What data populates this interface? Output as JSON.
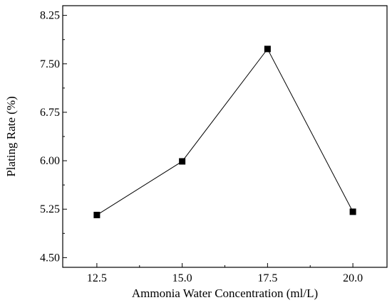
{
  "chart_data": {
    "type": "line",
    "title": "",
    "xlabel": "Ammonia Water Concentration (ml/L)",
    "ylabel": "Plating Rate (%)",
    "x": [
      12.5,
      15.0,
      17.5,
      20.0
    ],
    "series": [
      {
        "values": [
          5.16,
          5.99,
          7.73,
          5.21
        ]
      }
    ],
    "xlim": [
      11.5,
      21.0
    ],
    "ylim": [
      4.35,
      8.4
    ],
    "xticks": [
      12.5,
      15.0,
      17.5,
      20.0
    ],
    "xtick_labels": [
      "12.5",
      "15.0",
      "17.5",
      "20.0"
    ],
    "yticks": [
      4.5,
      5.25,
      6.0,
      6.75,
      7.5,
      8.25
    ],
    "ytick_labels": [
      "4.50",
      "5.25",
      "6.00",
      "6.75",
      "7.50",
      "8.25"
    ],
    "marker": "square",
    "grid": false,
    "colors": {
      "line": "#000000",
      "marker": "#000000",
      "axes": "#000000"
    }
  }
}
